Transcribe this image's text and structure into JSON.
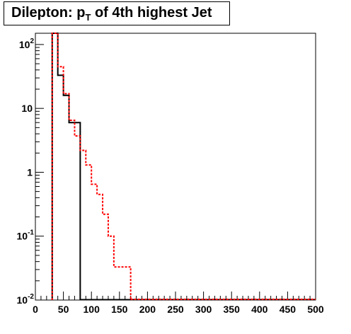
{
  "title": {
    "prefix": "Dilepton: p",
    "subscript": "T",
    "suffix": " of 4th highest Jet"
  },
  "chart_data": {
    "type": "histogram",
    "title": "Dilepton: p_T of 4th highest Jet",
    "xlim": [
      0,
      500
    ],
    "ylim": [
      0.01,
      150
    ],
    "y_scale": "log",
    "x_ticks": [
      0,
      50,
      100,
      150,
      200,
      250,
      300,
      350,
      400,
      450,
      500
    ],
    "y_ticks": [
      {
        "base": "10",
        "exp": "-2",
        "value": 0.01
      },
      {
        "base": "10",
        "exp": "-1",
        "value": 0.1
      },
      {
        "base": "1",
        "exp": "",
        "value": 1
      },
      {
        "base": "10",
        "exp": "",
        "value": 10
      },
      {
        "base": "10",
        "exp": "2",
        "value": 100
      }
    ],
    "bin_width": 10,
    "bin_edges_start": 30,
    "series": [
      {
        "style": "solid",
        "color": "#000000",
        "bins": [
          {
            "x": [
              30,
              40
            ],
            "y": 150
          },
          {
            "x": [
              40,
              50
            ],
            "y": 33
          },
          {
            "x": [
              50,
              60
            ],
            "y": 16
          },
          {
            "x": [
              60,
              80
            ],
            "y": 6
          }
        ]
      },
      {
        "style": "dashed",
        "color": "#ff0000",
        "bins": [
          {
            "x": [
              30,
              40
            ],
            "y": 150
          },
          {
            "x": [
              40,
              50
            ],
            "y": 45
          },
          {
            "x": [
              50,
              60
            ],
            "y": 17
          },
          {
            "x": [
              60,
              70
            ],
            "y": 6.5
          },
          {
            "x": [
              70,
              80
            ],
            "y": 3.7
          },
          {
            "x": [
              80,
              90
            ],
            "y": 2.2
          },
          {
            "x": [
              90,
              100
            ],
            "y": 1.3
          },
          {
            "x": [
              100,
              110
            ],
            "y": 0.65
          },
          {
            "x": [
              110,
              120
            ],
            "y": 0.45
          },
          {
            "x": [
              120,
              130
            ],
            "y": 0.22
          },
          {
            "x": [
              130,
              140
            ],
            "y": 0.1
          },
          {
            "x": [
              140,
              170
            ],
            "y": 0.033
          }
        ]
      }
    ]
  }
}
